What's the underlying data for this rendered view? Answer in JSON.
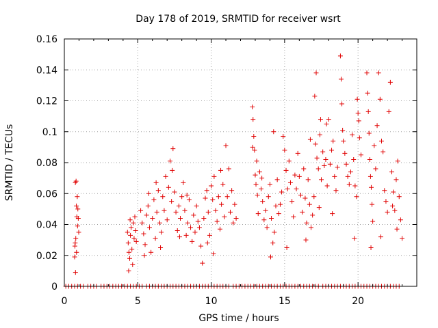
{
  "chart_data": {
    "type": "scatter",
    "title": "Day 178 of 2019, SRMTID for receiver wsrt",
    "xlabel": "GPS time / hours",
    "ylabel": "SRMTID / TECUs",
    "xlim": [
      0,
      24
    ],
    "ylim": [
      0,
      0.16
    ],
    "x_ticks": [
      0,
      5,
      10,
      15,
      20
    ],
    "x_tick_labels": [
      "0",
      "5",
      "10",
      "15",
      "20"
    ],
    "y_ticks": [
      0,
      0.02,
      0.04,
      0.06,
      0.08,
      0.1,
      0.12,
      0.14,
      0.16
    ],
    "y_tick_labels": [
      "0",
      "0.02",
      "0.04",
      "0.06",
      "0.08",
      "0.1",
      "0.12",
      "0.14",
      "0.16"
    ],
    "grid": true,
    "marker": "+",
    "color": "#e00000",
    "series": [
      {
        "name": "SRMTID",
        "points": [
          [
            0.75,
            0.067
          ],
          [
            0.8,
            0.068
          ],
          [
            0.82,
            0.052
          ],
          [
            0.85,
            0.045
          ],
          [
            0.78,
            0.031
          ],
          [
            0.72,
            0.026
          ],
          [
            0.7,
            0.019
          ],
          [
            0.9,
            0.039
          ],
          [
            0.95,
            0.044
          ],
          [
            0.88,
            0.058
          ],
          [
            0.76,
            0.009
          ],
          [
            0.83,
            0.022
          ],
          [
            0.92,
            0.05
          ],
          [
            0.98,
            0.035
          ],
          [
            0.74,
            0.028
          ],
          [
            4.3,
            0.035
          ],
          [
            4.35,
            0.028
          ],
          [
            4.4,
            0.022
          ],
          [
            4.45,
            0.018
          ],
          [
            4.5,
            0.033
          ],
          [
            4.55,
            0.038
          ],
          [
            4.6,
            0.024
          ],
          [
            4.65,
            0.014
          ],
          [
            4.7,
            0.041
          ],
          [
            4.75,
            0.031
          ],
          [
            4.8,
            0.045
          ],
          [
            4.85,
            0.036
          ],
          [
            4.9,
            0.029
          ],
          [
            4.38,
            0.01
          ],
          [
            4.48,
            0.043
          ],
          [
            5.2,
            0.049
          ],
          [
            5.3,
            0.041
          ],
          [
            5.4,
            0.034
          ],
          [
            5.5,
            0.027
          ],
          [
            5.6,
            0.046
          ],
          [
            5.7,
            0.052
          ],
          [
            5.8,
            0.038
          ],
          [
            5.9,
            0.022
          ],
          [
            6.0,
            0.044
          ],
          [
            6.1,
            0.056
          ],
          [
            6.2,
            0.031
          ],
          [
            6.3,
            0.048
          ],
          [
            6.4,
            0.062
          ],
          [
            6.5,
            0.041
          ],
          [
            6.6,
            0.035
          ],
          [
            6.7,
            0.058
          ],
          [
            6.8,
            0.049
          ],
          [
            6.9,
            0.071
          ],
          [
            7.0,
            0.043
          ],
          [
            5.45,
            0.02
          ],
          [
            5.75,
            0.06
          ],
          [
            6.25,
            0.067
          ],
          [
            6.55,
            0.025
          ],
          [
            7.1,
            0.064
          ],
          [
            7.2,
            0.081
          ],
          [
            7.3,
            0.055
          ],
          [
            7.4,
            0.089
          ],
          [
            7.5,
            0.061
          ],
          [
            7.6,
            0.048
          ],
          [
            7.7,
            0.036
          ],
          [
            7.8,
            0.052
          ],
          [
            7.9,
            0.044
          ],
          [
            8.0,
            0.058
          ],
          [
            8.1,
            0.067
          ],
          [
            8.2,
            0.049
          ],
          [
            8.3,
            0.033
          ],
          [
            8.4,
            0.041
          ],
          [
            8.5,
            0.056
          ],
          [
            8.6,
            0.038
          ],
          [
            8.7,
            0.029
          ],
          [
            8.8,
            0.046
          ],
          [
            8.9,
            0.035
          ],
          [
            9.0,
            0.052
          ],
          [
            9.1,
            0.042
          ],
          [
            7.35,
            0.075
          ],
          [
            7.85,
            0.032
          ],
          [
            8.35,
            0.059
          ],
          [
            9.2,
            0.038
          ],
          [
            9.3,
            0.026
          ],
          [
            9.4,
            0.015
          ],
          [
            9.5,
            0.044
          ],
          [
            9.6,
            0.057
          ],
          [
            9.7,
            0.062
          ],
          [
            9.8,
            0.048
          ],
          [
            9.9,
            0.033
          ],
          [
            10.0,
            0.065
          ],
          [
            10.1,
            0.056
          ],
          [
            10.2,
            0.071
          ],
          [
            10.3,
            0.049
          ],
          [
            10.4,
            0.042
          ],
          [
            10.5,
            0.058
          ],
          [
            10.6,
            0.037
          ],
          [
            10.7,
            0.053
          ],
          [
            10.8,
            0.066
          ],
          [
            10.9,
            0.045
          ],
          [
            11.0,
            0.091
          ],
          [
            11.1,
            0.058
          ],
          [
            11.2,
            0.076
          ],
          [
            11.3,
            0.048
          ],
          [
            11.4,
            0.062
          ],
          [
            11.5,
            0.041
          ],
          [
            11.6,
            0.053
          ],
          [
            11.7,
            0.044
          ],
          [
            9.75,
            0.028
          ],
          [
            10.15,
            0.021
          ],
          [
            10.65,
            0.075
          ],
          [
            12.8,
            0.116
          ],
          [
            12.85,
            0.108
          ],
          [
            12.9,
            0.097
          ],
          [
            12.95,
            0.088
          ],
          [
            13.0,
            0.072
          ],
          [
            13.05,
            0.066
          ],
          [
            13.1,
            0.081
          ],
          [
            13.15,
            0.059
          ],
          [
            13.2,
            0.047
          ],
          [
            13.3,
            0.074
          ],
          [
            13.4,
            0.063
          ],
          [
            13.5,
            0.055
          ],
          [
            13.6,
            0.043
          ],
          [
            13.7,
            0.049
          ],
          [
            13.8,
            0.038
          ],
          [
            13.9,
            0.058
          ],
          [
            14.0,
            0.066
          ],
          [
            14.1,
            0.044
          ],
          [
            14.2,
            0.028
          ],
          [
            14.3,
            0.035
          ],
          [
            14.4,
            0.052
          ],
          [
            14.5,
            0.069
          ],
          [
            14.6,
            0.047
          ],
          [
            14.7,
            0.053
          ],
          [
            14.8,
            0.061
          ],
          [
            12.82,
            0.09
          ],
          [
            13.45,
            0.07
          ],
          [
            14.05,
            0.019
          ],
          [
            14.25,
            0.1
          ],
          [
            14.9,
            0.097
          ],
          [
            15.0,
            0.088
          ],
          [
            15.1,
            0.075
          ],
          [
            15.2,
            0.063
          ],
          [
            15.3,
            0.081
          ],
          [
            15.4,
            0.067
          ],
          [
            15.5,
            0.055
          ],
          [
            15.6,
            0.045
          ],
          [
            15.7,
            0.072
          ],
          [
            15.8,
            0.063
          ],
          [
            15.9,
            0.086
          ],
          [
            16.0,
            0.071
          ],
          [
            16.1,
            0.059
          ],
          [
            16.2,
            0.048
          ],
          [
            16.3,
            0.076
          ],
          [
            16.4,
            0.057
          ],
          [
            16.5,
            0.041
          ],
          [
            16.6,
            0.069
          ],
          [
            16.7,
            0.053
          ],
          [
            16.8,
            0.038
          ],
          [
            16.9,
            0.046
          ],
          [
            17.0,
            0.058
          ],
          [
            15.15,
            0.025
          ],
          [
            16.45,
            0.03
          ],
          [
            16.75,
            0.095
          ],
          [
            17.1,
            0.092
          ],
          [
            17.2,
            0.083
          ],
          [
            17.3,
            0.076
          ],
          [
            17.4,
            0.098
          ],
          [
            17.5,
            0.069
          ],
          [
            17.6,
            0.087
          ],
          [
            17.7,
            0.078
          ],
          [
            17.8,
            0.082
          ],
          [
            17.9,
            0.065
          ],
          [
            18.0,
            0.108
          ],
          [
            18.1,
            0.079
          ],
          [
            18.2,
            0.088
          ],
          [
            18.3,
            0.094
          ],
          [
            18.4,
            0.071
          ],
          [
            18.5,
            0.062
          ],
          [
            18.6,
            0.077
          ],
          [
            17.15,
            0.138
          ],
          [
            17.05,
            0.123
          ],
          [
            17.45,
            0.108
          ],
          [
            17.85,
            0.105
          ],
          [
            18.25,
            0.047
          ],
          [
            17.35,
            0.051
          ],
          [
            18.8,
            0.149
          ],
          [
            18.85,
            0.134
          ],
          [
            18.9,
            0.118
          ],
          [
            18.95,
            0.101
          ],
          [
            19.0,
            0.094
          ],
          [
            19.1,
            0.086
          ],
          [
            19.2,
            0.079
          ],
          [
            19.3,
            0.071
          ],
          [
            19.4,
            0.066
          ],
          [
            19.5,
            0.074
          ],
          [
            19.6,
            0.098
          ],
          [
            19.7,
            0.082
          ],
          [
            19.8,
            0.065
          ],
          [
            19.9,
            0.058
          ],
          [
            20.0,
            0.112
          ],
          [
            20.1,
            0.096
          ],
          [
            20.2,
            0.085
          ],
          [
            19.75,
            0.031
          ],
          [
            19.95,
            0.121
          ],
          [
            20.05,
            0.107
          ],
          [
            20.6,
            0.138
          ],
          [
            20.65,
            0.125
          ],
          [
            20.7,
            0.113
          ],
          [
            20.75,
            0.099
          ],
          [
            20.8,
            0.082
          ],
          [
            20.85,
            0.071
          ],
          [
            20.9,
            0.064
          ],
          [
            20.95,
            0.053
          ],
          [
            21.0,
            0.042
          ],
          [
            21.1,
            0.091
          ],
          [
            21.2,
            0.076
          ],
          [
            21.3,
            0.104
          ],
          [
            21.4,
            0.138
          ],
          [
            21.5,
            0.121
          ],
          [
            21.6,
            0.094
          ],
          [
            21.7,
            0.087
          ],
          [
            21.8,
            0.062
          ],
          [
            21.9,
            0.055
          ],
          [
            22.0,
            0.048
          ],
          [
            22.1,
            0.113
          ],
          [
            22.2,
            0.132
          ],
          [
            22.3,
            0.074
          ],
          [
            22.4,
            0.061
          ],
          [
            22.5,
            0.049
          ],
          [
            22.6,
            0.069
          ],
          [
            22.7,
            0.081
          ],
          [
            22.8,
            0.058
          ],
          [
            22.9,
            0.043
          ],
          [
            23.0,
            0.031
          ],
          [
            20.88,
            0.025
          ],
          [
            21.55,
            0.032
          ],
          [
            22.35,
            0.052
          ],
          [
            22.65,
            0.037
          ]
        ],
        "zero_points_x": [
          0.1,
          0.3,
          0.5,
          0.7,
          0.9,
          1.1,
          1.3,
          1.6,
          1.8,
          2.0,
          2.2,
          2.5,
          2.7,
          2.9,
          3.1,
          3.3,
          3.5,
          3.7,
          3.9,
          4.1,
          4.3,
          4.5,
          4.7,
          4.9,
          5.1,
          5.3,
          5.6,
          5.8,
          6.0,
          6.2,
          6.4,
          6.6,
          6.8,
          7.0,
          7.2,
          7.4,
          7.6,
          7.8,
          8.0,
          8.2,
          8.4,
          8.6,
          8.8,
          9.0,
          9.2,
          9.4,
          9.6,
          9.8,
          10.0,
          10.2,
          10.4,
          10.6,
          10.8,
          11.0,
          11.2,
          11.5,
          11.7,
          11.9,
          12.1,
          12.3,
          12.5,
          12.7,
          12.9,
          13.1,
          13.3,
          13.5,
          13.7,
          13.9,
          14.1,
          14.3,
          14.5,
          14.7,
          14.9,
          15.1,
          15.3,
          15.5,
          15.7,
          15.9,
          16.1,
          16.3,
          16.5,
          16.7,
          16.9,
          17.1,
          17.3,
          17.6,
          17.8,
          18.0,
          18.2,
          18.4,
          18.6,
          18.8,
          19.0,
          19.2,
          19.4,
          19.6,
          19.8,
          20.0,
          20.2,
          20.4,
          20.6,
          20.8,
          21.0,
          21.2,
          21.4,
          21.6,
          21.8,
          22.0,
          22.2,
          22.4,
          22.6,
          22.8
        ]
      }
    ]
  }
}
